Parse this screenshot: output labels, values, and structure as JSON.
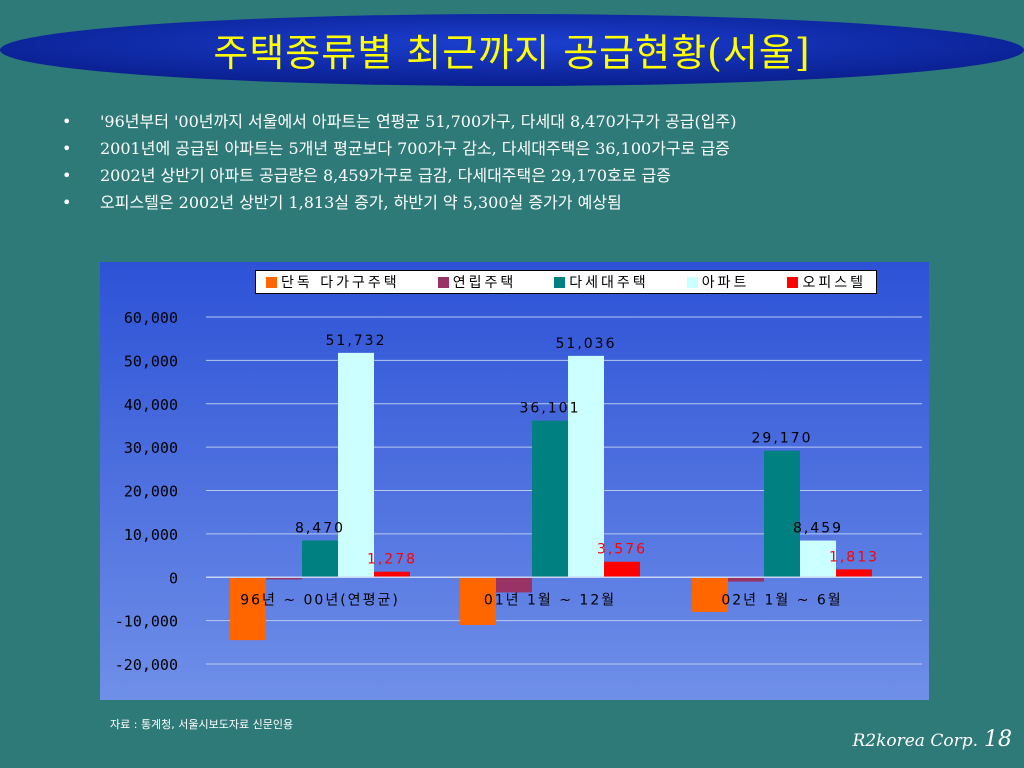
{
  "slide": {
    "title": "주택종류별 최근까지 공급현황(서울]",
    "bullets": [
      "'96년부터 '00년까지 서울에서 아파트는 연평균 51,700가구, 다세대 8,470가구가 공급(입주)",
      "2001년에 공급된 아파트는 5개년 평균보다 700가구 감소, 다세대주택은 36,100가구로 급증",
      "2002년 상반기 아파트 공급량은 8,459가구로 급감, 다세대주택은 29,170호로 급증",
      "오피스텔은 2002년 상반기 1,813실 증가, 하반기 약 5,300실 증가가 예상됨"
    ],
    "bullet_glyph": "•",
    "source": "자료 : 통계청, 서울시보도자료 신문인용",
    "company": "R2korea Corp.",
    "page_number": "18",
    "colors": {
      "background": "#2e7a78",
      "title_text": "#ffff00",
      "title_oval": "#0b2aa8"
    }
  },
  "chart_data": {
    "type": "bar",
    "categories": [
      "96년 ~ 00년(연평균)",
      "01년 1월 ~ 12월",
      "02년 1월  ~ 6월"
    ],
    "series": [
      {
        "name": "단독 다가구주택",
        "color": "#ff6600",
        "values": [
          -14500,
          -11000,
          -8000
        ]
      },
      {
        "name": "연립주택",
        "color": "#993366",
        "values": [
          -500,
          -3500,
          -1000
        ]
      },
      {
        "name": "다세대주택",
        "color": "#008080",
        "values": [
          8470,
          36101,
          29170
        ]
      },
      {
        "name": "아파트",
        "color": "#ccffff",
        "values": [
          51732,
          51036,
          8459
        ]
      },
      {
        "name": "오피스텔",
        "color": "#ff0000",
        "values": [
          1278,
          3576,
          1813
        ]
      }
    ],
    "data_labels": [
      {
        "series": 2,
        "category": 0,
        "text": "8,470",
        "color": "#000000"
      },
      {
        "series": 3,
        "category": 0,
        "text": "51,732",
        "color": "#000000"
      },
      {
        "series": 4,
        "category": 0,
        "text": "1,278",
        "color": "#ff0000"
      },
      {
        "series": 2,
        "category": 1,
        "text": "36,101",
        "color": "#000000"
      },
      {
        "series": 3,
        "category": 1,
        "text": "51,036",
        "color": "#000000"
      },
      {
        "series": 4,
        "category": 1,
        "text": "3,576",
        "color": "#ff0000"
      },
      {
        "series": 2,
        "category": 2,
        "text": "29,170",
        "color": "#000000"
      },
      {
        "series": 3,
        "category": 2,
        "text": "8,459",
        "color": "#000000"
      },
      {
        "series": 4,
        "category": 2,
        "text": "1,813",
        "color": "#ff0000"
      }
    ],
    "yticks": [
      60000,
      50000,
      40000,
      30000,
      20000,
      10000,
      0,
      -10000,
      -20000
    ],
    "ytick_labels": [
      "60,000",
      "50,000",
      "40,000",
      "30,000",
      "20,000",
      "10,000",
      "0",
      "-10,000",
      "-20,000"
    ],
    "ylim": [
      -20000,
      60000
    ],
    "grid": true,
    "legend_position": "top",
    "background_gradient": [
      "#6f8fe8",
      "#2d52d6"
    ]
  }
}
